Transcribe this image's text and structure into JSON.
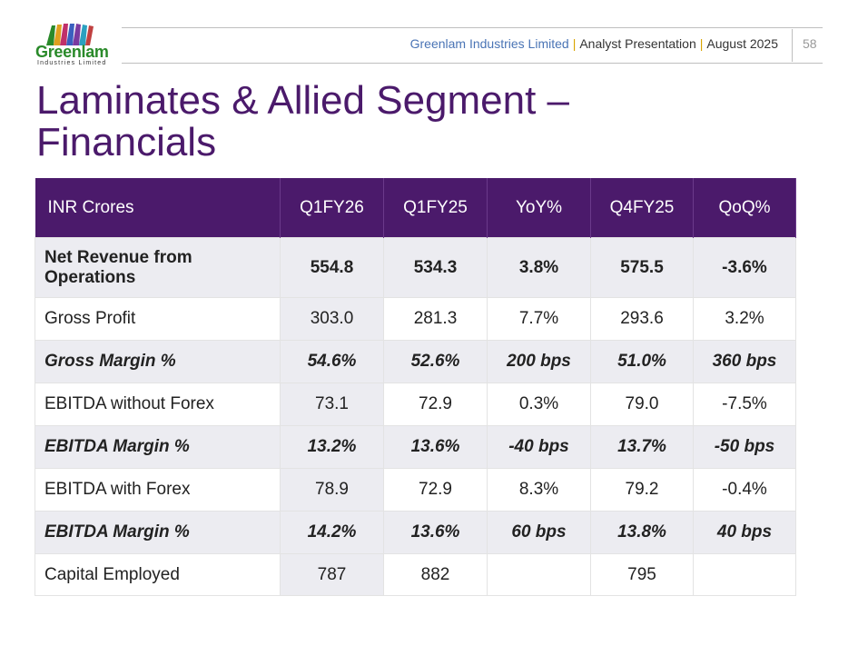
{
  "logo": {
    "name": "Greenlam",
    "subtitle": "Industries Limited"
  },
  "header": {
    "company": "Greenlam Industries Limited",
    "separator": "|",
    "presentation": "Analyst Presentation",
    "date": "August 2025",
    "page": "58"
  },
  "title": {
    "line1": "Laminates & Allied Segment –",
    "line2": "Financials"
  },
  "colors": {
    "accent": "#4b1a6b",
    "shade": "#ececf1"
  },
  "table": {
    "headers": [
      "INR Crores",
      "Q1FY26",
      "Q1FY25",
      "YoY%",
      "Q4FY25",
      "QoQ%"
    ],
    "rows": [
      [
        "Net Revenue from Operations",
        "554.8",
        "534.3",
        "3.8%",
        "575.5",
        "-3.6%"
      ],
      [
        "Gross Profit",
        "303.0",
        "281.3",
        "7.7%",
        "293.6",
        "3.2%"
      ],
      [
        "Gross Margin %",
        "54.6%",
        "52.6%",
        "200 bps",
        "51.0%",
        "360 bps"
      ],
      [
        "EBITDA without Forex",
        "73.1",
        "72.9",
        "0.3%",
        "79.0",
        "-7.5%"
      ],
      [
        "EBITDA Margin %",
        "13.2%",
        "13.6%",
        "-40 bps",
        "13.7%",
        "-50 bps"
      ],
      [
        "EBITDA with Forex",
        "78.9",
        "72.9",
        "8.3%",
        "79.2",
        "-0.4%"
      ],
      [
        "EBITDA Margin %",
        "14.2%",
        "13.6%",
        "60 bps",
        "13.8%",
        "40 bps"
      ],
      [
        "Capital Employed",
        "787",
        "882",
        "",
        "795",
        ""
      ]
    ]
  }
}
